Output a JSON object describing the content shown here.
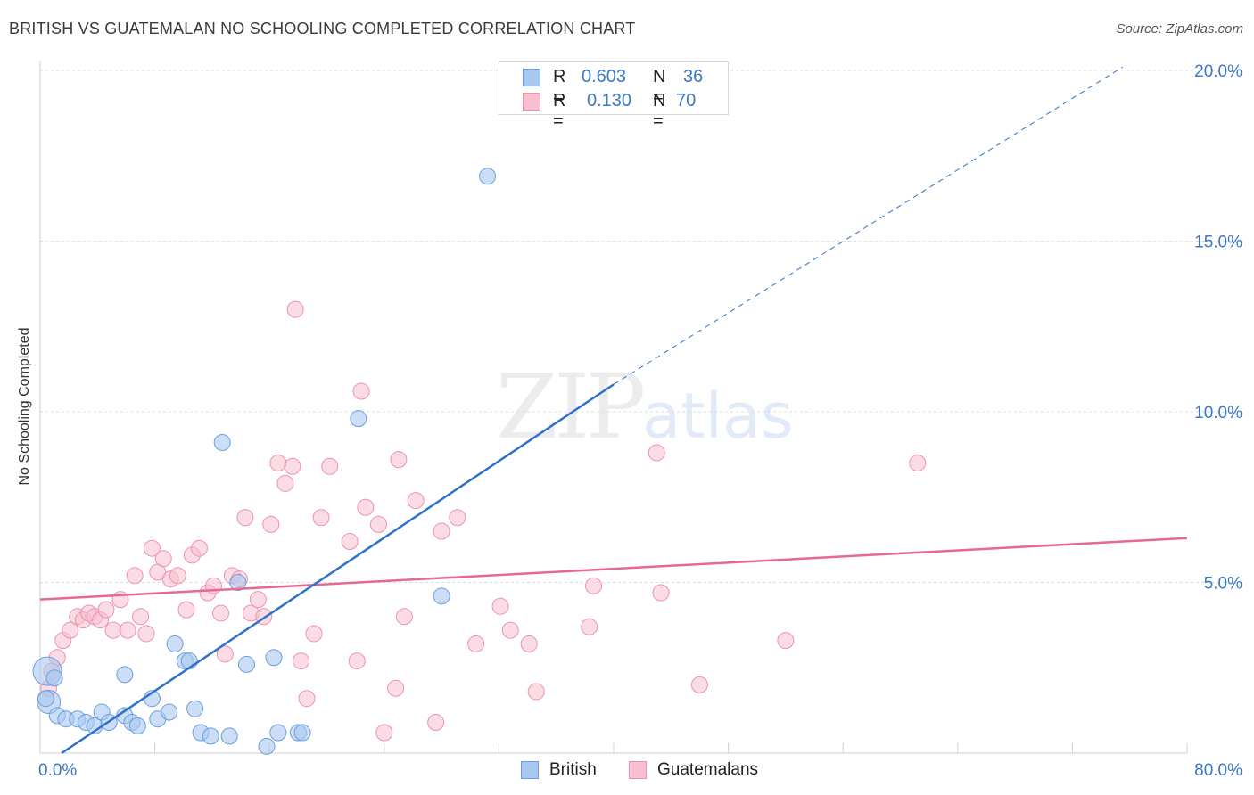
{
  "header": {
    "title": "BRITISH VS GUATEMALAN NO SCHOOLING COMPLETED CORRELATION CHART",
    "source": "Source: ZipAtlas.com"
  },
  "watermark": {
    "zip": "ZIP",
    "atlas": "atlas"
  },
  "legend": {
    "rows": [
      {
        "r_label": "R =",
        "r_value": "0.603",
        "n_label": "N =",
        "n_value": "36"
      },
      {
        "r_label": "R =",
        "r_value": "0.130",
        "n_label": "N =",
        "n_value": "70"
      }
    ],
    "bottom": [
      "British",
      "Guatemalans"
    ]
  },
  "colors": {
    "british_fill": "#a9c8f0",
    "british_stroke": "#6b9ee0",
    "british_line": "#2f72cc",
    "guatemalan_fill": "#f7bfd0",
    "guatemalan_stroke": "#ec92ae",
    "guatemalan_line": "#e76892",
    "tick_label": "#3a78c8",
    "grid": "#dcdcdc"
  },
  "chart_data": {
    "type": "scatter",
    "title": "BRITISH VS GUATEMALAN NO SCHOOLING COMPLETED CORRELATION CHART",
    "xlabel": "",
    "ylabel": "No Schooling Completed",
    "xlim": [
      0,
      80
    ],
    "ylim": [
      0,
      20
    ],
    "x_tick_labels": [
      "0.0%",
      "80.0%"
    ],
    "y_ticks": [
      5,
      10,
      15,
      20
    ],
    "y_tick_labels": [
      "5.0%",
      "10.0%",
      "15.0%",
      "20.0%"
    ],
    "grid": true,
    "legend_position": "top-center",
    "series": [
      {
        "name": "British",
        "r": 0.603,
        "n": 36,
        "trend": {
          "x": [
            1.5,
            40
          ],
          "y": [
            0,
            10.8
          ],
          "dashed_to": {
            "x": [
              40,
              75.5
            ],
            "y": [
              10.8,
              20.1
            ]
          }
        },
        "points": [
          [
            0.5,
            2.4
          ],
          [
            0.6,
            1.5
          ],
          [
            1.2,
            1.1
          ],
          [
            1.8,
            1.0
          ],
          [
            2.6,
            1.0
          ],
          [
            3.2,
            0.9
          ],
          [
            3.8,
            0.8
          ],
          [
            4.3,
            1.2
          ],
          [
            4.8,
            0.9
          ],
          [
            5.9,
            1.1
          ],
          [
            6.4,
            0.9
          ],
          [
            6.8,
            0.8
          ],
          [
            8.2,
            1.0
          ],
          [
            9.0,
            1.2
          ],
          [
            7.8,
            1.6
          ],
          [
            5.9,
            2.3
          ],
          [
            9.4,
            3.2
          ],
          [
            10.1,
            2.7
          ],
          [
            10.4,
            2.7
          ],
          [
            10.8,
            1.3
          ],
          [
            11.2,
            0.6
          ],
          [
            11.9,
            0.5
          ],
          [
            13.2,
            0.5
          ],
          [
            12.7,
            9.1
          ],
          [
            13.8,
            5.0
          ],
          [
            14.4,
            2.6
          ],
          [
            15.8,
            0.2
          ],
          [
            16.3,
            2.8
          ],
          [
            16.6,
            0.6
          ],
          [
            18.0,
            0.6
          ],
          [
            18.3,
            0.6
          ],
          [
            22.2,
            9.8
          ],
          [
            28.0,
            4.6
          ],
          [
            31.2,
            16.9
          ],
          [
            0.4,
            1.6
          ],
          [
            1.0,
            2.2
          ]
        ]
      },
      {
        "name": "Guatemalans",
        "r": 0.13,
        "n": 70,
        "trend": {
          "x": [
            0,
            80
          ],
          "y": [
            4.5,
            6.3
          ]
        },
        "points": [
          [
            0.6,
            1.9
          ],
          [
            1.2,
            2.8
          ],
          [
            1.6,
            3.3
          ],
          [
            2.1,
            3.6
          ],
          [
            2.6,
            4.0
          ],
          [
            3.0,
            3.9
          ],
          [
            3.4,
            4.1
          ],
          [
            3.8,
            4.0
          ],
          [
            4.2,
            3.9
          ],
          [
            4.6,
            4.2
          ],
          [
            5.1,
            3.6
          ],
          [
            5.6,
            4.5
          ],
          [
            6.1,
            3.6
          ],
          [
            6.6,
            5.2
          ],
          [
            7.0,
            4.0
          ],
          [
            7.4,
            3.5
          ],
          [
            7.8,
            6.0
          ],
          [
            8.2,
            5.3
          ],
          [
            8.6,
            5.7
          ],
          [
            9.1,
            5.1
          ],
          [
            9.6,
            5.2
          ],
          [
            10.2,
            4.2
          ],
          [
            10.6,
            5.8
          ],
          [
            11.1,
            6.0
          ],
          [
            11.7,
            4.7
          ],
          [
            12.1,
            4.9
          ],
          [
            12.6,
            4.1
          ],
          [
            12.9,
            2.9
          ],
          [
            13.4,
            5.2
          ],
          [
            13.9,
            5.1
          ],
          [
            14.3,
            6.9
          ],
          [
            14.7,
            4.1
          ],
          [
            15.2,
            4.5
          ],
          [
            15.6,
            4.0
          ],
          [
            16.1,
            6.7
          ],
          [
            16.6,
            8.5
          ],
          [
            17.1,
            7.9
          ],
          [
            17.6,
            8.4
          ],
          [
            18.2,
            2.7
          ],
          [
            18.6,
            1.6
          ],
          [
            19.1,
            3.5
          ],
          [
            19.6,
            6.9
          ],
          [
            20.2,
            8.4
          ],
          [
            17.8,
            13.0
          ],
          [
            21.6,
            6.2
          ],
          [
            22.1,
            2.7
          ],
          [
            22.4,
            10.6
          ],
          [
            22.7,
            7.2
          ],
          [
            23.6,
            6.7
          ],
          [
            24.0,
            0.6
          ],
          [
            25.0,
            8.6
          ],
          [
            25.4,
            4.0
          ],
          [
            24.8,
            1.9
          ],
          [
            26.2,
            7.4
          ],
          [
            27.6,
            0.9
          ],
          [
            28.0,
            6.5
          ],
          [
            29.1,
            6.9
          ],
          [
            30.4,
            3.2
          ],
          [
            32.1,
            4.3
          ],
          [
            32.8,
            3.6
          ],
          [
            34.1,
            3.2
          ],
          [
            34.6,
            1.8
          ],
          [
            38.3,
            3.7
          ],
          [
            38.6,
            4.9
          ],
          [
            43.0,
            8.8
          ],
          [
            43.3,
            4.7
          ],
          [
            46.0,
            2.0
          ],
          [
            52.0,
            3.3
          ],
          [
            61.2,
            8.5
          ],
          [
            0.8,
            2.4
          ]
        ]
      }
    ]
  }
}
